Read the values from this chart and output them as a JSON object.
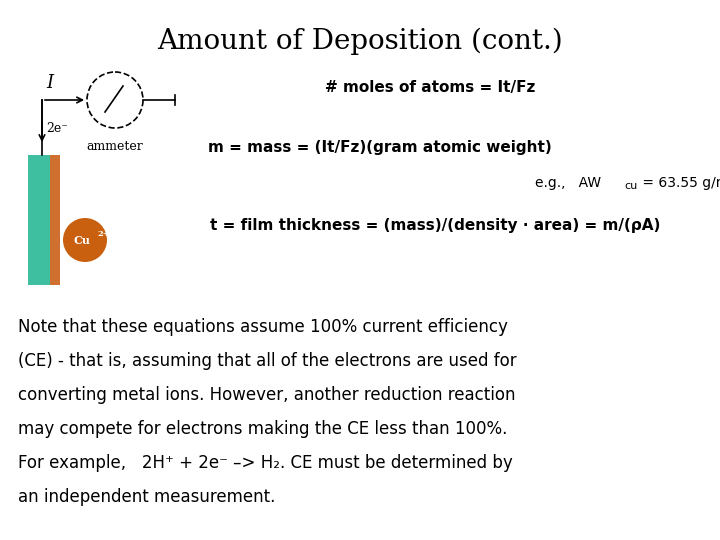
{
  "title": "Amount of Deposition (cont.)",
  "title_fontsize": 20,
  "background_color": "#ffffff",
  "text_color": "#000000",
  "line1": "# moles of atoms = It/Fz",
  "line2_bold": "m = mass = (It/Fz)(gram atomic weight)",
  "line4_bold": "t = film thickness = (mass)/(density · area) = m/(ρA)",
  "teal_color": "#3DBFA0",
  "orange_color": "#D07030",
  "cu_color": "#C86010"
}
